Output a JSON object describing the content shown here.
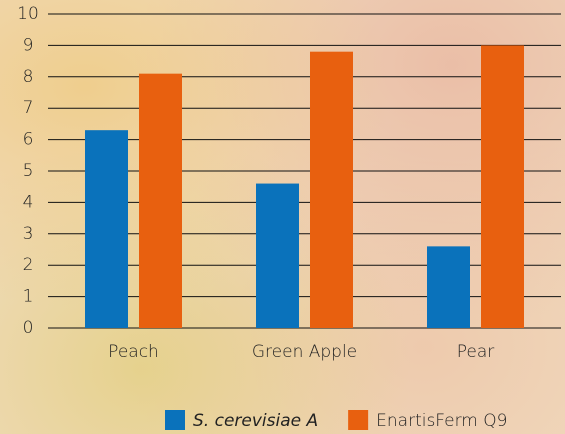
{
  "chart_data": {
    "type": "bar",
    "categories": [
      "Peach",
      "Green Apple",
      "Pear"
    ],
    "series": [
      {
        "name": "S. cerevisiae A",
        "color": "#0a72bb",
        "values": [
          6.3,
          4.6,
          2.6
        ]
      },
      {
        "name": "EnartisFerm Q9",
        "color": "#e8600f",
        "values": [
          8.1,
          8.8,
          9.0
        ]
      }
    ],
    "ylim": [
      0,
      10
    ],
    "yticks": [
      0,
      1,
      2,
      3,
      4,
      5,
      6,
      7,
      8,
      9,
      10
    ],
    "grid": true
  }
}
